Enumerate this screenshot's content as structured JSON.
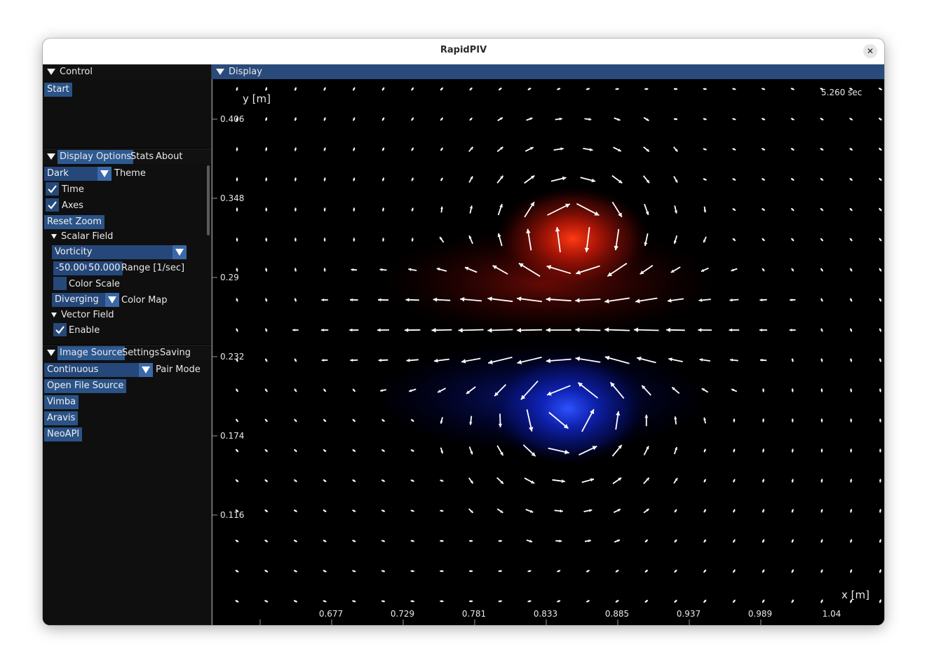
{
  "window": {
    "title": "RapidPIV"
  },
  "icons": {
    "close": "close-icon",
    "collapse": "collapse-triangle-icon",
    "check": "checkmark-icon",
    "combo_arrow": "chevron-down-icon"
  },
  "colors": {
    "accent": "#2a5387",
    "header_active": "#294a7a",
    "vort_positive": "#ff3a12",
    "vort_negative": "#1d3dff"
  },
  "control": {
    "title": "Control",
    "start": "Start"
  },
  "display_options": {
    "tabs": [
      "Display Options",
      "Stats",
      "About"
    ],
    "theme_value": "Dark",
    "theme_label": "Theme",
    "time_label": "Time",
    "time_checked": true,
    "axes_label": "Axes",
    "axes_checked": true,
    "reset_zoom": "Reset Zoom",
    "scalar_field_label": "Scalar Field",
    "scalar_value": "Vorticity",
    "range_min": "-50.000",
    "range_max": "50.000",
    "range_label": "Range [1/sec]",
    "color_scale_label": "Color Scale",
    "color_scale_checked": false,
    "colormap_value": "Diverging",
    "colormap_label": "Color Map",
    "vector_field_label": "Vector Field",
    "enable_label": "Enable",
    "enable_checked": true
  },
  "image_source": {
    "tabs": [
      "Image Source",
      "Settings",
      "Saving"
    ],
    "pair_mode_value": "Continuous",
    "pair_mode_label": "Pair Mode",
    "buttons": [
      "Open File Source",
      "Vimba",
      "Aravis",
      "NeoAPI"
    ]
  },
  "display": {
    "title": "Display",
    "time_text": "5.260 sec",
    "y_label": "y [m]",
    "x_label": "x [m]",
    "y_ticks": [
      "0.406",
      "0.348",
      "0.29",
      "0.232",
      "0.174",
      "0.116"
    ],
    "x_ticks": [
      "0.677",
      "0.729",
      "0.781",
      "0.833",
      "0.885",
      "0.937",
      "0.989",
      "1.04"
    ]
  }
}
